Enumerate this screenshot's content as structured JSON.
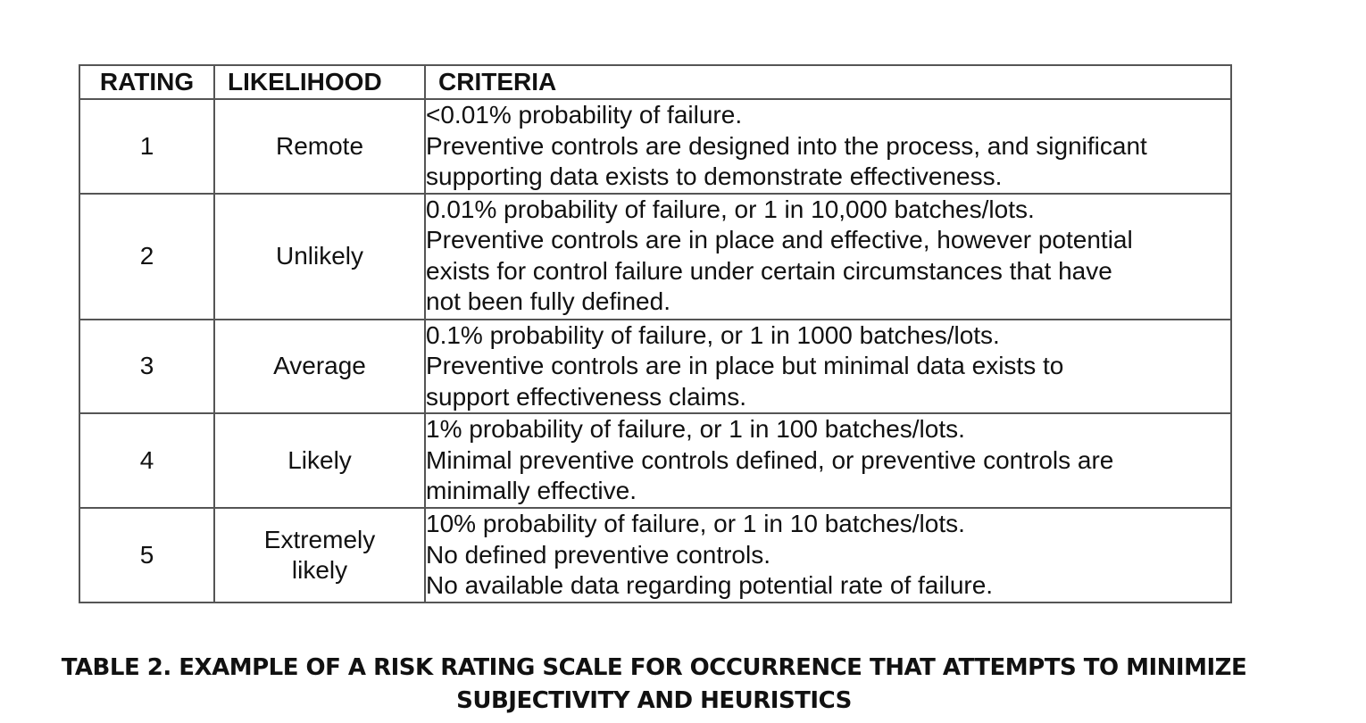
{
  "table": {
    "headers": {
      "rating": "RATING",
      "likelihood": "LIKELIHOOD",
      "criteria": "CRITERIA"
    },
    "rows": [
      {
        "rating": "1",
        "likelihood": "Remote",
        "criteria": [
          "<0.01% probability of failure.",
          "Preventive controls are designed into the process, and significant",
          "supporting data exists to demonstrate effectiveness."
        ]
      },
      {
        "rating": "2",
        "likelihood": "Unlikely",
        "criteria": [
          "0.01% probability of failure, or 1 in 10,000 batches/lots.",
          "Preventive controls are in place and effective, however potential",
          "exists for control failure under certain circumstances that have",
          "not been fully defined."
        ]
      },
      {
        "rating": "3",
        "likelihood": "Average",
        "criteria": [
          "0.1% probability of failure, or 1 in 1000 batches/lots.",
          "Preventive controls are in place but minimal data exists to",
          "support effectiveness claims."
        ]
      },
      {
        "rating": "4",
        "likelihood": "Likely",
        "criteria": [
          "1% probability of failure, or 1 in 100 batches/lots.",
          "Minimal preventive controls defined, or preventive controls are",
          "minimally effective."
        ]
      },
      {
        "rating": "5",
        "likelihood": "Extremely likely",
        "criteria": [
          "10% probability of failure, or 1 in 10 batches/lots.",
          "No defined preventive controls.",
          "No available data regarding potential rate of failure."
        ]
      }
    ]
  },
  "caption": {
    "line1": "TABLE 2.  EXAMPLE OF A RISK RATING SCALE FOR OCCURRENCE THAT ATTEMPTS TO MINIMIZE",
    "line2": "SUBJECTIVITY AND HEURISTICS"
  }
}
